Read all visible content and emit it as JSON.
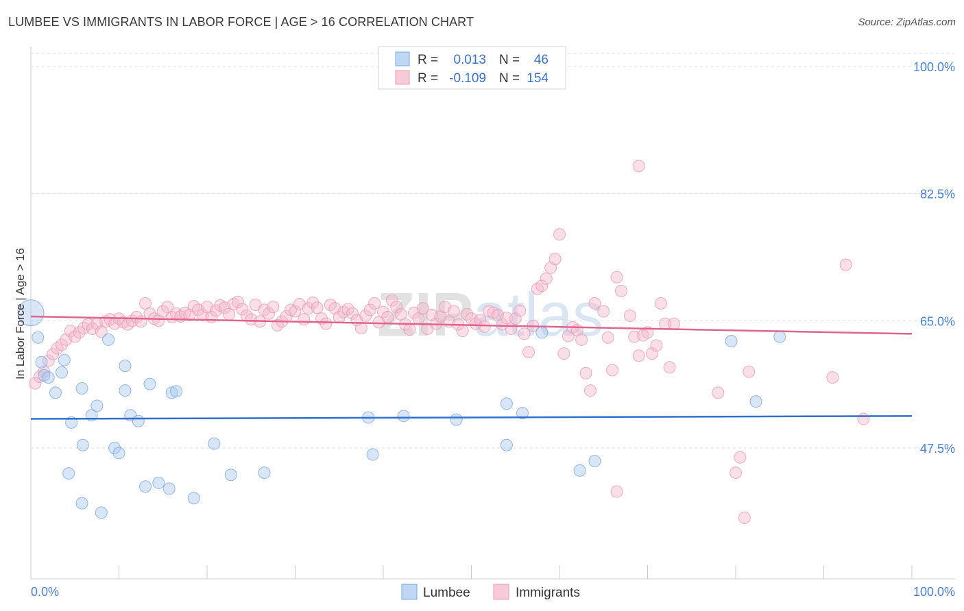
{
  "title": "LUMBEE VS IMMIGRANTS IN LABOR FORCE | AGE > 16 CORRELATION CHART",
  "source": "Source: ZipAtlas.com",
  "watermark": "ZIPatlas",
  "colors": {
    "lumbee_fill": "#a9c8f0",
    "lumbee_line": "#2f6fd0",
    "immigrants_fill": "#f5b8cb",
    "immigrants_line": "#e0648f",
    "tick_text": "#4a7fd0",
    "grid": "#dddddd"
  },
  "legend": {
    "rows": [
      {
        "r_label": "R =",
        "r_value": "0.013",
        "n_label": "N =",
        "n_value": "46"
      },
      {
        "r_label": "R =",
        "r_value": "-0.109",
        "n_label": "N =",
        "n_value": "154"
      }
    ]
  },
  "chart_data": {
    "type": "scatter",
    "title": "LUMBEE VS IMMIGRANTS IN LABOR FORCE | AGE > 16 CORRELATION CHART",
    "xlabel": "",
    "ylabel": "In Labor Force | Age > 16",
    "xlim": [
      0,
      100
    ],
    "ylim": [
      30,
      100
    ],
    "x_tick_labels": [
      "0.0%",
      "100.0%"
    ],
    "y_ticks": [
      47.5,
      65.0,
      82.5,
      100.0
    ],
    "y_tick_labels": [
      "47.5%",
      "65.0%",
      "82.5%",
      "100.0%"
    ],
    "grid": true,
    "legend_position": "top-center",
    "series": [
      {
        "name": "Lumbee",
        "trend": [
          [
            0,
            51.5
          ],
          [
            100,
            51.9
          ]
        ],
        "points": [
          [
            0.2,
            66.1
          ],
          [
            0.8,
            62.7
          ],
          [
            1.2,
            59.3
          ],
          [
            1.5,
            57.5
          ],
          [
            2.0,
            57.2
          ],
          [
            2.8,
            55.1
          ],
          [
            3.5,
            57.9
          ],
          [
            3.8,
            59.6
          ],
          [
            4.6,
            51.0
          ],
          [
            5.8,
            55.7
          ],
          [
            5.9,
            47.9
          ],
          [
            6.9,
            52.0
          ],
          [
            7.5,
            53.3
          ],
          [
            8.8,
            62.4
          ],
          [
            9.5,
            47.5
          ],
          [
            10.0,
            46.8
          ],
          [
            10.7,
            55.4
          ],
          [
            10.7,
            58.8
          ],
          [
            11.3,
            52.0
          ],
          [
            12.2,
            51.2
          ],
          [
            13.0,
            42.2
          ],
          [
            13.5,
            56.3
          ],
          [
            14.5,
            42.7
          ],
          [
            15.7,
            41.9
          ],
          [
            16.0,
            55.1
          ],
          [
            16.5,
            55.3
          ],
          [
            18.5,
            40.6
          ],
          [
            20.8,
            48.1
          ],
          [
            22.7,
            43.8
          ],
          [
            26.5,
            44.1
          ],
          [
            38.3,
            51.7
          ],
          [
            38.8,
            46.6
          ],
          [
            42.3,
            51.9
          ],
          [
            48.3,
            51.4
          ],
          [
            54.0,
            53.6
          ],
          [
            54.0,
            47.9
          ],
          [
            55.8,
            52.3
          ],
          [
            58.0,
            63.4
          ],
          [
            62.3,
            44.4
          ],
          [
            64.0,
            45.7
          ],
          [
            79.5,
            62.2
          ],
          [
            82.3,
            53.9
          ],
          [
            85.0,
            62.8
          ],
          [
            4.3,
            44.0
          ],
          [
            5.8,
            39.9
          ],
          [
            8.0,
            38.6
          ]
        ]
      },
      {
        "name": "Immigrants",
        "trend": [
          [
            0,
            65.6
          ],
          [
            100,
            63.2
          ]
        ],
        "points": [
          [
            0.5,
            56.4
          ],
          [
            1.0,
            57.3
          ],
          [
            1.5,
            58.0
          ],
          [
            2.0,
            59.5
          ],
          [
            2.5,
            60.4
          ],
          [
            3.0,
            61.2
          ],
          [
            3.5,
            61.7
          ],
          [
            4.0,
            62.4
          ],
          [
            4.5,
            63.6
          ],
          [
            5.0,
            62.8
          ],
          [
            5.5,
            63.4
          ],
          [
            6.0,
            64.0
          ],
          [
            6.5,
            64.5
          ],
          [
            7.0,
            63.9
          ],
          [
            7.5,
            64.6
          ],
          [
            8.0,
            63.5
          ],
          [
            8.5,
            64.9
          ],
          [
            9.0,
            65.2
          ],
          [
            9.5,
            64.6
          ],
          [
            10.0,
            65.3
          ],
          [
            10.5,
            64.8
          ],
          [
            11.0,
            64.5
          ],
          [
            11.5,
            65.0
          ],
          [
            12.0,
            65.5
          ],
          [
            12.5,
            64.9
          ],
          [
            13.0,
            67.4
          ],
          [
            13.5,
            66.0
          ],
          [
            14.0,
            65.3
          ],
          [
            14.5,
            65.0
          ],
          [
            15.0,
            66.3
          ],
          [
            15.5,
            66.9
          ],
          [
            16.0,
            65.5
          ],
          [
            16.5,
            66.0
          ],
          [
            17.0,
            65.6
          ],
          [
            17.5,
            66.1
          ],
          [
            18.0,
            65.8
          ],
          [
            18.5,
            67.0
          ],
          [
            19.0,
            66.5
          ],
          [
            19.5,
            65.8
          ],
          [
            20.0,
            66.9
          ],
          [
            20.5,
            65.5
          ],
          [
            21.0,
            66.4
          ],
          [
            21.5,
            67.1
          ],
          [
            22.0,
            66.8
          ],
          [
            22.5,
            65.9
          ],
          [
            23.0,
            67.3
          ],
          [
            23.5,
            67.6
          ],
          [
            24.0,
            66.6
          ],
          [
            24.5,
            65.7
          ],
          [
            25.0,
            65.2
          ],
          [
            25.5,
            67.2
          ],
          [
            26.0,
            64.9
          ],
          [
            26.5,
            66.5
          ],
          [
            27.0,
            66.0
          ],
          [
            27.5,
            66.9
          ],
          [
            28.0,
            64.4
          ],
          [
            28.5,
            64.9
          ],
          [
            29.0,
            65.6
          ],
          [
            29.5,
            66.5
          ],
          [
            30.0,
            66.3
          ],
          [
            30.5,
            67.3
          ],
          [
            31.0,
            65.2
          ],
          [
            31.5,
            66.7
          ],
          [
            32.0,
            67.5
          ],
          [
            32.5,
            66.8
          ],
          [
            33.0,
            65.3
          ],
          [
            33.5,
            64.6
          ],
          [
            34.0,
            67.2
          ],
          [
            34.5,
            66.7
          ],
          [
            35.0,
            65.5
          ],
          [
            35.5,
            66.2
          ],
          [
            36.0,
            66.6
          ],
          [
            36.5,
            66.0
          ],
          [
            37.0,
            65.1
          ],
          [
            37.5,
            64.0
          ],
          [
            38.0,
            65.7
          ],
          [
            38.5,
            66.5
          ],
          [
            39.0,
            67.4
          ],
          [
            39.5,
            64.8
          ],
          [
            40.0,
            66.2
          ],
          [
            40.5,
            65.5
          ],
          [
            41.0,
            67.8
          ],
          [
            41.5,
            66.9
          ],
          [
            42.0,
            65.9
          ],
          [
            42.5,
            64.5
          ],
          [
            43.0,
            63.8
          ],
          [
            43.5,
            66.1
          ],
          [
            44.0,
            65.3
          ],
          [
            44.5,
            66.7
          ],
          [
            45.0,
            63.9
          ],
          [
            45.5,
            65.8
          ],
          [
            46.0,
            64.6
          ],
          [
            46.5,
            65.6
          ],
          [
            47.0,
            66.9
          ],
          [
            47.5,
            64.9
          ],
          [
            48.0,
            66.3
          ],
          [
            48.5,
            64.5
          ],
          [
            49.0,
            63.6
          ],
          [
            49.5,
            65.9
          ],
          [
            50.0,
            65.3
          ],
          [
            50.5,
            64.6
          ],
          [
            51.0,
            65.1
          ],
          [
            51.5,
            64.2
          ],
          [
            52.0,
            66.3
          ],
          [
            52.5,
            66.1
          ],
          [
            53.0,
            65.8
          ],
          [
            53.5,
            64.5
          ],
          [
            54.0,
            65.4
          ],
          [
            54.5,
            63.9
          ],
          [
            55.0,
            65.3
          ],
          [
            55.5,
            66.4
          ],
          [
            56.0,
            63.2
          ],
          [
            56.5,
            60.7
          ],
          [
            57.0,
            64.3
          ],
          [
            57.5,
            69.4
          ],
          [
            58.0,
            69.8
          ],
          [
            58.5,
            70.8
          ],
          [
            59.0,
            72.3
          ],
          [
            59.5,
            73.5
          ],
          [
            60.0,
            76.9
          ],
          [
            60.5,
            60.5
          ],
          [
            61.0,
            62.9
          ],
          [
            61.5,
            64.1
          ],
          [
            62.0,
            63.7
          ],
          [
            62.5,
            62.4
          ],
          [
            63.0,
            57.8
          ],
          [
            63.5,
            55.4
          ],
          [
            64.0,
            67.4
          ],
          [
            65.0,
            66.3
          ],
          [
            65.5,
            62.7
          ],
          [
            66.0,
            58.2
          ],
          [
            66.5,
            71.0
          ],
          [
            67.0,
            69.1
          ],
          [
            68.0,
            65.7
          ],
          [
            68.5,
            62.8
          ],
          [
            69.0,
            60.2
          ],
          [
            69.5,
            63.0
          ],
          [
            70.0,
            63.4
          ],
          [
            70.5,
            60.5
          ],
          [
            71.0,
            61.6
          ],
          [
            71.5,
            67.4
          ],
          [
            72.0,
            64.6
          ],
          [
            72.5,
            58.6
          ],
          [
            73.0,
            64.6
          ],
          [
            78.0,
            55.1
          ],
          [
            80.5,
            46.2
          ],
          [
            81.0,
            37.9
          ],
          [
            81.5,
            58.0
          ],
          [
            69.0,
            86.3
          ],
          [
            92.5,
            72.7
          ],
          [
            91.0,
            57.2
          ],
          [
            94.5,
            51.5
          ],
          [
            66.5,
            41.5
          ],
          [
            80.0,
            44.1
          ]
        ]
      }
    ]
  },
  "bottom_legend": {
    "items": [
      {
        "label": "Lumbee"
      },
      {
        "label": "Immigrants"
      }
    ]
  }
}
